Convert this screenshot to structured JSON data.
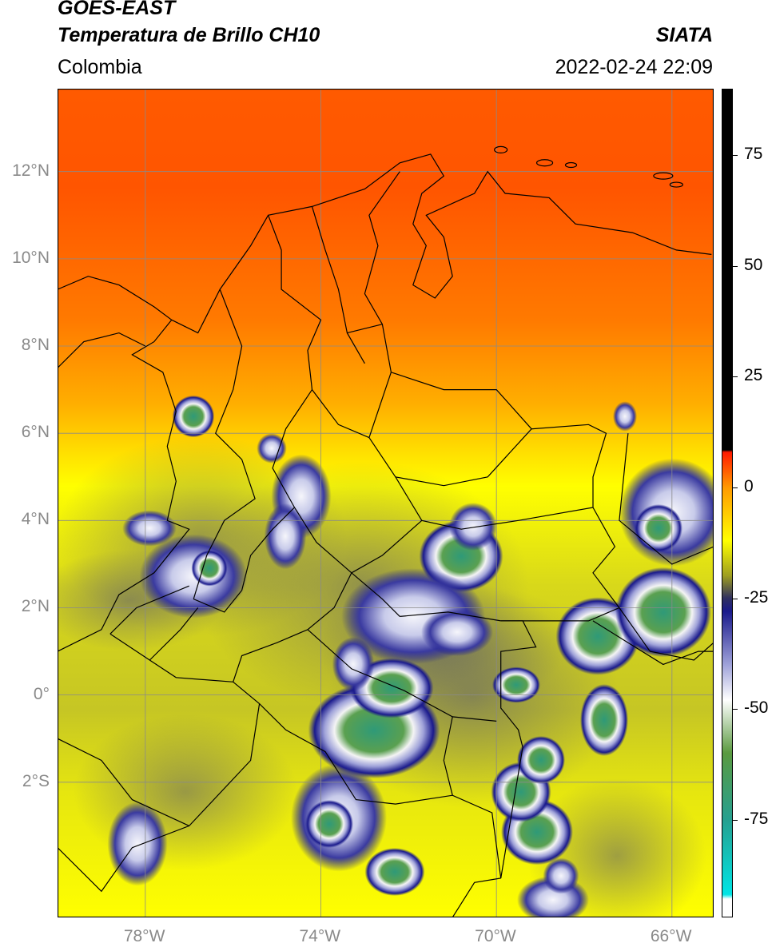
{
  "header": {
    "satellite": "GOES-EAST",
    "product": "Temperatura de Brillo CH10",
    "agency": "SIATA",
    "region": "Colombia",
    "datetime": "2022-02-24 22:09"
  },
  "map": {
    "lat_ticks": [
      {
        "value": 12,
        "label": "12°N"
      },
      {
        "value": 10,
        "label": "10°N"
      },
      {
        "value": 8,
        "label": "8°N"
      },
      {
        "value": 6,
        "label": "6°N"
      },
      {
        "value": 4,
        "label": "4°N"
      },
      {
        "value": 2,
        "label": "2°N"
      },
      {
        "value": 0,
        "label": "0°"
      },
      {
        "value": -2,
        "label": "2°S"
      }
    ],
    "lon_ticks": [
      {
        "value": -78,
        "label": "78°W"
      },
      {
        "value": -74,
        "label": "74°W"
      },
      {
        "value": -70,
        "label": "70°W"
      },
      {
        "value": -66,
        "label": "66°W"
      }
    ],
    "extent": {
      "lon_min": -80,
      "lon_max": -65.05,
      "lat_min": -5.1,
      "lat_max": 13.9
    }
  },
  "colorbar": {
    "ticks": [
      {
        "value": 75,
        "label": "75"
      },
      {
        "value": 50,
        "label": "50"
      },
      {
        "value": 25,
        "label": "25"
      },
      {
        "value": 0,
        "label": "0"
      },
      {
        "value": -25,
        "label": "-25"
      },
      {
        "value": -50,
        "label": "-50"
      },
      {
        "value": -75,
        "label": "-75"
      }
    ],
    "min": -97,
    "max": 90,
    "stops": [
      {
        "value": 90,
        "color": "#000000"
      },
      {
        "value": 8.5,
        "color": "#000000"
      },
      {
        "value": 8,
        "color": "#ff1a00"
      },
      {
        "value": 0,
        "color": "#ff9a00"
      },
      {
        "value": -12,
        "color": "#ffff00"
      },
      {
        "value": -20,
        "color": "#9d9d20"
      },
      {
        "value": -25,
        "color": "#303060"
      },
      {
        "value": -28,
        "color": "#1a1a8c"
      },
      {
        "value": -40,
        "color": "#9fa2d9"
      },
      {
        "value": -48,
        "color": "#ffffff"
      },
      {
        "value": -60,
        "color": "#5a9a40"
      },
      {
        "value": -75,
        "color": "#26a090"
      },
      {
        "value": -92,
        "color": "#00e5e5"
      },
      {
        "value": -93,
        "color": "#ffffff"
      },
      {
        "value": -97,
        "color": "#ffffff"
      }
    ]
  }
}
